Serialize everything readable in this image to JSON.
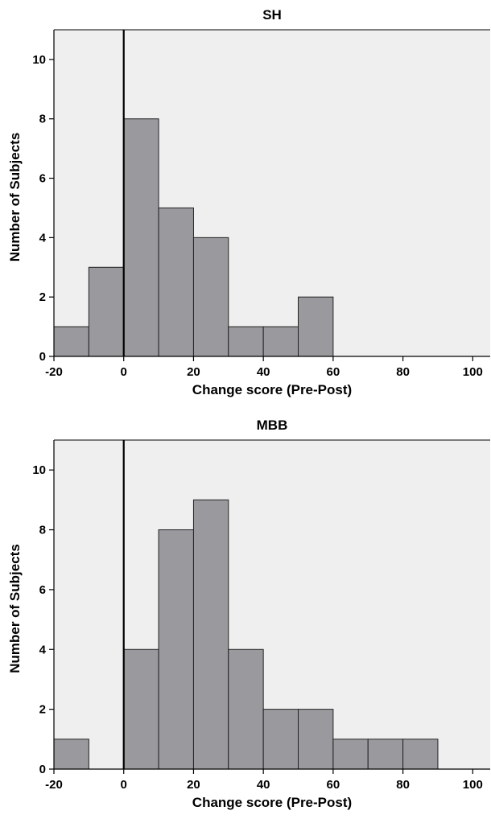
{
  "chart_data": [
    {
      "type": "bar",
      "title": "SH",
      "xlabel": "Change score (Pre-Post)",
      "ylabel": "Number of Subjects",
      "xlim": [
        -20,
        105
      ],
      "ylim": [
        0,
        11
      ],
      "xticks": [
        -20,
        0,
        20,
        40,
        60,
        80,
        100
      ],
      "yticks": [
        0,
        2,
        4,
        6,
        8,
        10
      ],
      "reference_line_x": 0,
      "bin_width": 10,
      "bins": [
        {
          "start": -20,
          "end": -10,
          "count": 1
        },
        {
          "start": -10,
          "end": 0,
          "count": 3
        },
        {
          "start": 0,
          "end": 10,
          "count": 8
        },
        {
          "start": 10,
          "end": 20,
          "count": 5
        },
        {
          "start": 20,
          "end": 30,
          "count": 4
        },
        {
          "start": 30,
          "end": 40,
          "count": 1
        },
        {
          "start": 40,
          "end": 50,
          "count": 1
        },
        {
          "start": 50,
          "end": 60,
          "count": 2
        }
      ],
      "colors": {
        "bar": "#9a9a9e",
        "background": "#efefef"
      }
    },
    {
      "type": "bar",
      "title": "MBB",
      "xlabel": "Change score (Pre-Post)",
      "ylabel": "Number of Subjects",
      "xlim": [
        -20,
        105
      ],
      "ylim": [
        0,
        11
      ],
      "xticks": [
        -20,
        0,
        20,
        40,
        60,
        80,
        100
      ],
      "yticks": [
        0,
        2,
        4,
        6,
        8,
        10
      ],
      "reference_line_x": 0,
      "bin_width": 10,
      "bins": [
        {
          "start": -20,
          "end": -10,
          "count": 1
        },
        {
          "start": 0,
          "end": 10,
          "count": 4
        },
        {
          "start": 10,
          "end": 20,
          "count": 8
        },
        {
          "start": 20,
          "end": 30,
          "count": 9
        },
        {
          "start": 30,
          "end": 40,
          "count": 4
        },
        {
          "start": 40,
          "end": 50,
          "count": 2
        },
        {
          "start": 50,
          "end": 60,
          "count": 2
        },
        {
          "start": 60,
          "end": 70,
          "count": 1
        },
        {
          "start": 70,
          "end": 80,
          "count": 1
        },
        {
          "start": 80,
          "end": 90,
          "count": 1
        }
      ],
      "colors": {
        "bar": "#9a9a9e",
        "background": "#efefef"
      }
    }
  ]
}
